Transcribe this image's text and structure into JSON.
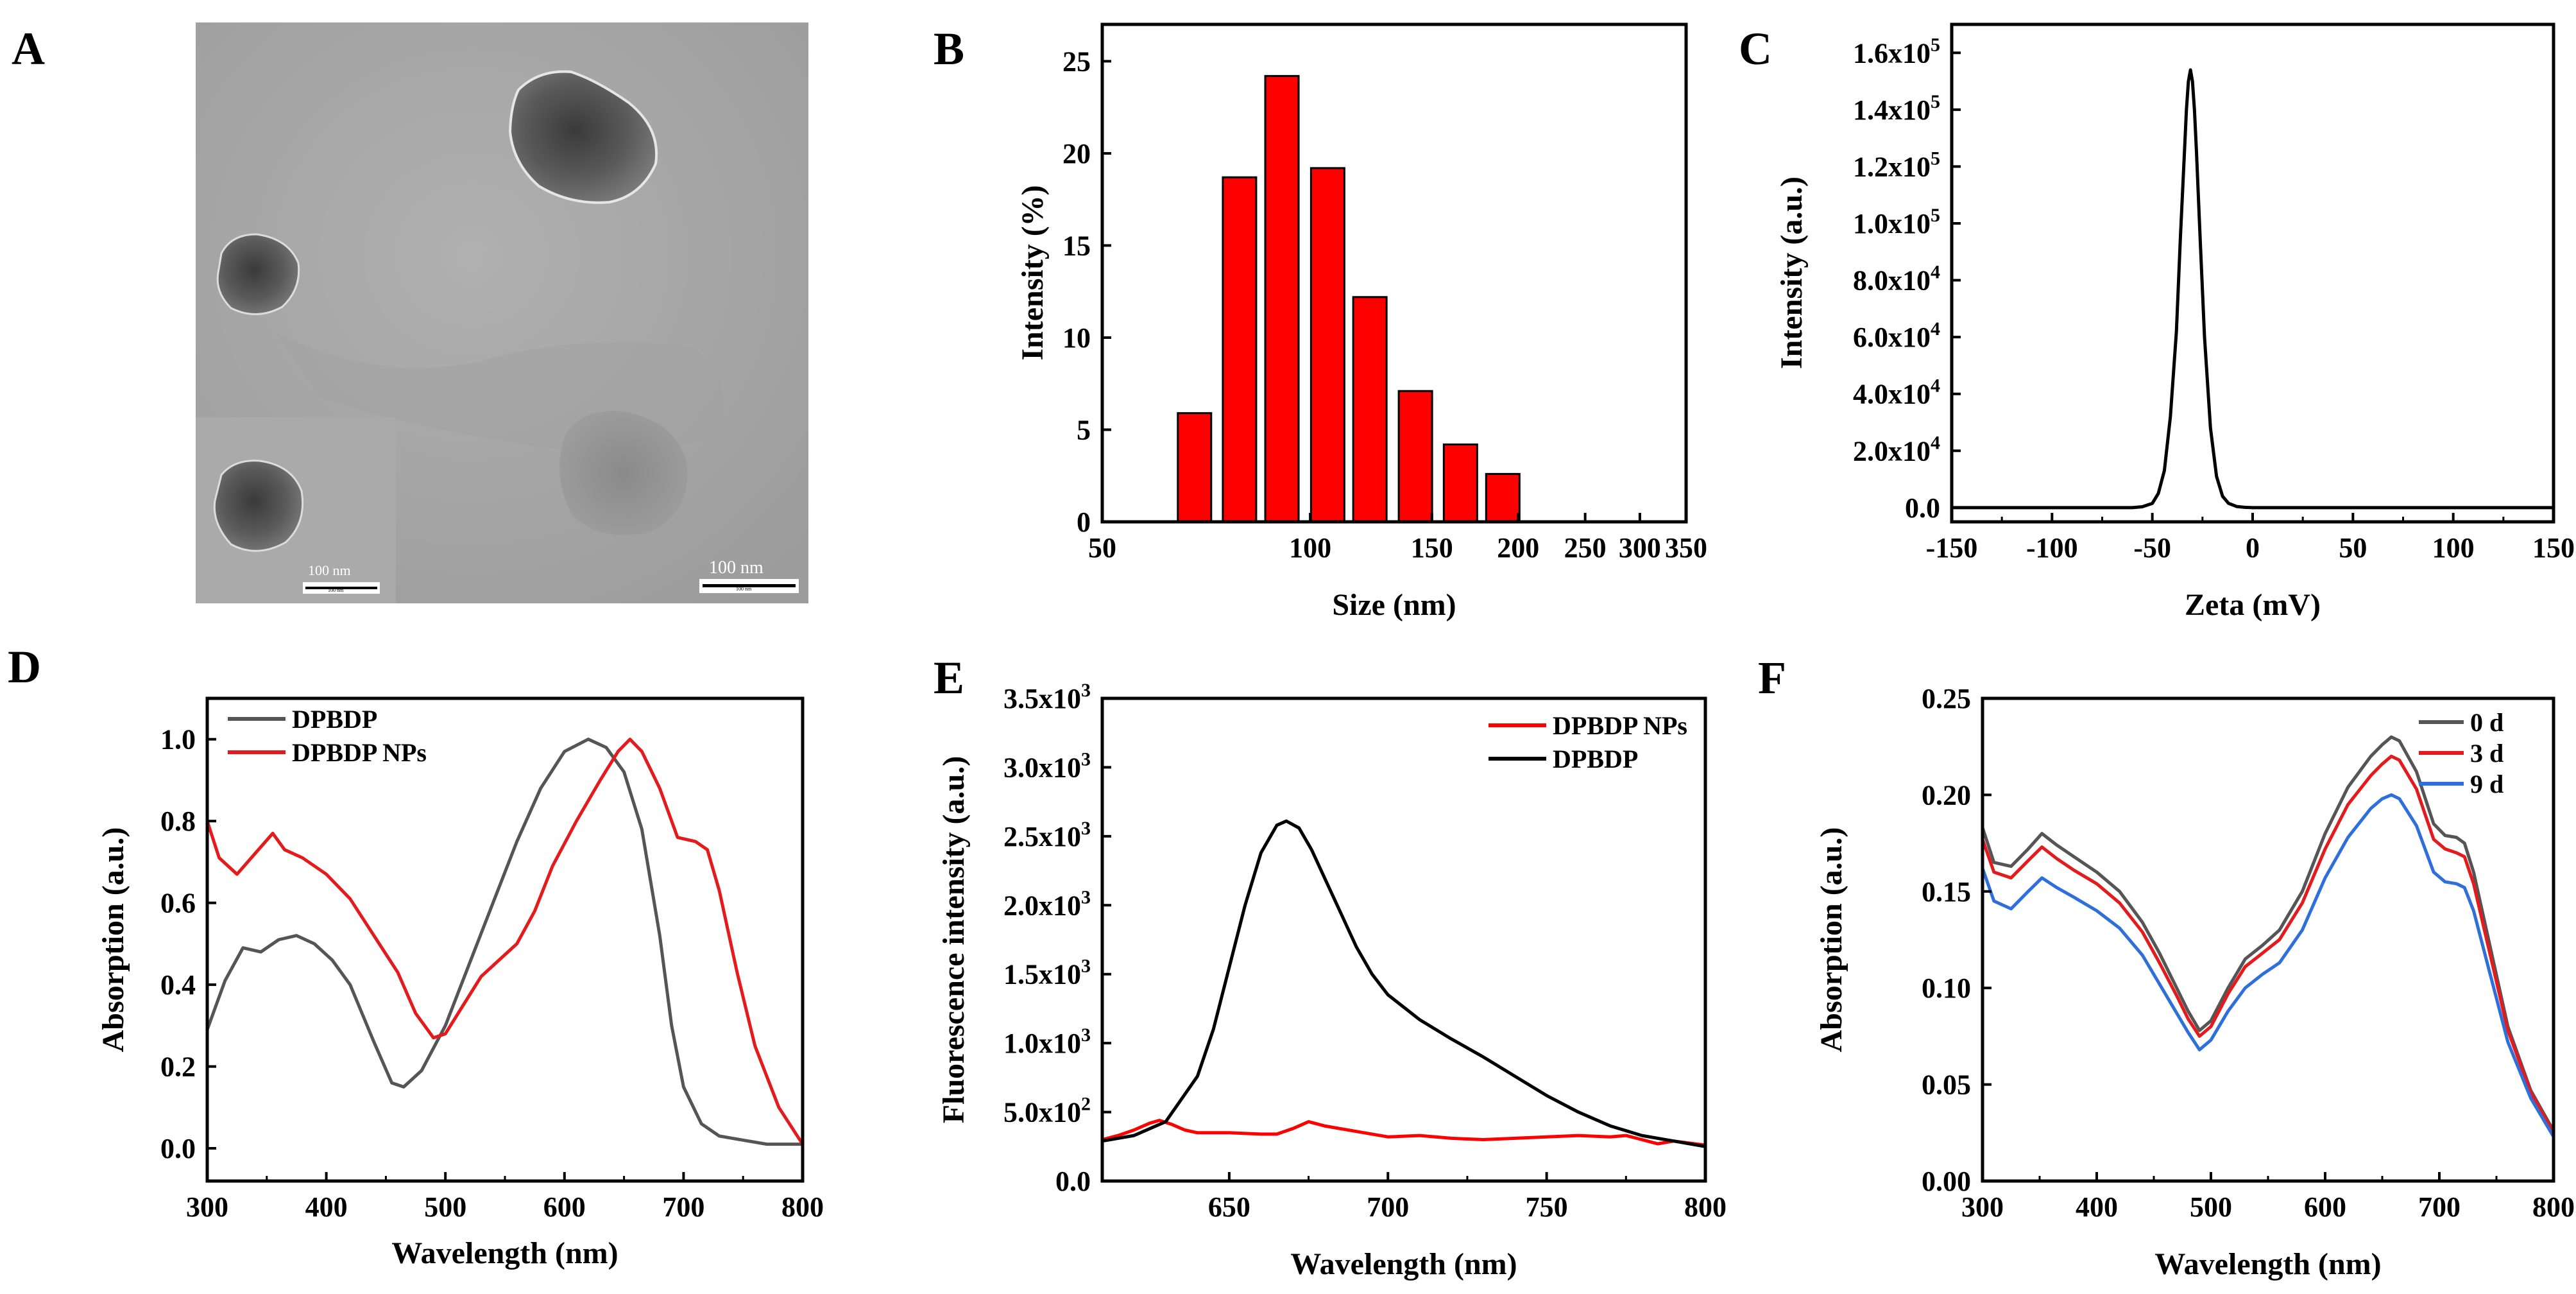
{
  "panels": {
    "A": {
      "letter": "A",
      "scale_main": "100 nm",
      "scale_inset": "100 nm",
      "scale_inset_small": "100 nm",
      "scale_main_small": "100 nm"
    },
    "B": {
      "letter": "B"
    },
    "C": {
      "letter": "C"
    },
    "D": {
      "letter": "D"
    },
    "E": {
      "letter": "E"
    },
    "F": {
      "letter": "F"
    }
  },
  "colors": {
    "red": "#e41a1c",
    "bar_red": "#ff0000",
    "black": "#000000",
    "gray": "#555555",
    "blue": "#2f6fdc",
    "tem_background": "#a6a6a6"
  },
  "chart_data": [
    {
      "panel": "B",
      "type": "bar",
      "xscale": "log",
      "xlabel": "Size (nm)",
      "ylabel": "Intensity (%)",
      "xlim": [
        50,
        350
      ],
      "ylim": [
        0,
        27
      ],
      "xticks": [
        50,
        100,
        150,
        200,
        250,
        300,
        350
      ],
      "xtick_labels": [
        "50",
        "100",
        "150",
        "200",
        "250",
        "300",
        "350"
      ],
      "yticks": [
        0,
        5,
        10,
        15,
        20,
        25
      ],
      "ytick_labels": [
        "0",
        "5",
        "10",
        "15",
        "20",
        "25"
      ],
      "series": [
        {
          "color": "#ff0000",
          "x": [
            68,
            79,
            91,
            106,
            122,
            142,
            165,
            190
          ],
          "values": [
            5.9,
            18.7,
            24.2,
            19.2,
            12.2,
            7.1,
            4.2,
            2.6
          ]
        }
      ]
    },
    {
      "panel": "C",
      "type": "line",
      "xlabel": "Zeta (mV)",
      "ylabel": "Intensity (a.u.)",
      "xlim": [
        -150,
        150
      ],
      "ylim": [
        -5000,
        170000
      ],
      "xticks": [
        -150,
        -100,
        -50,
        0,
        50,
        100,
        150
      ],
      "xtick_labels": [
        "-150",
        "-100",
        "-50",
        "0",
        "50",
        "100",
        "150"
      ],
      "yticks": [
        0,
        20000,
        40000,
        60000,
        80000,
        100000,
        120000,
        140000,
        160000
      ],
      "ytick_labels": [
        {
          "base": "0.0",
          "exp": ""
        },
        {
          "base": "2.0x10",
          "exp": "4"
        },
        {
          "base": "4.0x10",
          "exp": "4"
        },
        {
          "base": "6.0x10",
          "exp": "4"
        },
        {
          "base": "8.0x10",
          "exp": "4"
        },
        {
          "base": "1.0x10",
          "exp": "5"
        },
        {
          "base": "1.2x10",
          "exp": "5"
        },
        {
          "base": "1.4x10",
          "exp": "5"
        },
        {
          "base": "1.6x10",
          "exp": "5"
        }
      ],
      "series": [
        {
          "color": "#000000",
          "x": [
            -150,
            -60,
            -55,
            -50,
            -47,
            -44,
            -41,
            -38,
            -36,
            -34,
            -33,
            -32,
            -31,
            -30,
            -29,
            -28,
            -26,
            -24,
            -21,
            -18,
            -15,
            -12,
            -8,
            -4,
            0,
            150
          ],
          "y": [
            0,
            0,
            300,
            1500,
            5000,
            13000,
            32000,
            62000,
            95000,
            125000,
            140000,
            150000,
            154000,
            150000,
            140000,
            125000,
            92000,
            60000,
            28000,
            11000,
            4000,
            1500,
            400,
            100,
            0,
            0
          ]
        }
      ]
    },
    {
      "panel": "D",
      "type": "line",
      "xlabel": "Wavelength (nm)",
      "ylabel": "Absorption (a.u.)",
      "xlim": [
        300,
        800
      ],
      "ylim": [
        -0.08,
        1.1
      ],
      "xticks": [
        300,
        400,
        500,
        600,
        700,
        800
      ],
      "xtick_labels": [
        "300",
        "400",
        "500",
        "600",
        "700",
        "800"
      ],
      "yticks": [
        0,
        0.2,
        0.4,
        0.6,
        0.8,
        1.0
      ],
      "ytick_labels": [
        "0.0",
        "0.2",
        "0.4",
        "0.6",
        "0.8",
        "1.0"
      ],
      "legend": [
        "DPBDP",
        "DPBDP NPs"
      ],
      "legend_position": "top-left",
      "series": [
        {
          "name": "DPBDP",
          "color": "#555555",
          "x": [
            300,
            315,
            330,
            345,
            360,
            375,
            390,
            405,
            420,
            440,
            455,
            465,
            480,
            500,
            520,
            540,
            560,
            580,
            600,
            620,
            635,
            650,
            665,
            680,
            690,
            700,
            715,
            730,
            750,
            770,
            790,
            800
          ],
          "y": [
            0.29,
            0.41,
            0.49,
            0.48,
            0.51,
            0.52,
            0.5,
            0.46,
            0.4,
            0.26,
            0.16,
            0.15,
            0.19,
            0.3,
            0.45,
            0.6,
            0.75,
            0.88,
            0.97,
            1.0,
            0.98,
            0.92,
            0.78,
            0.52,
            0.3,
            0.15,
            0.06,
            0.03,
            0.02,
            0.01,
            0.01,
            0.01
          ]
        },
        {
          "name": "DPBDP NPs",
          "color": "#e41a1c",
          "x": [
            300,
            310,
            325,
            340,
            355,
            365,
            380,
            400,
            420,
            440,
            460,
            475,
            490,
            500,
            515,
            530,
            545,
            560,
            575,
            590,
            610,
            630,
            645,
            655,
            665,
            680,
            695,
            710,
            720,
            730,
            745,
            760,
            780,
            800
          ],
          "y": [
            0.8,
            0.71,
            0.67,
            0.72,
            0.77,
            0.73,
            0.71,
            0.67,
            0.61,
            0.52,
            0.43,
            0.33,
            0.27,
            0.28,
            0.35,
            0.42,
            0.46,
            0.5,
            0.58,
            0.69,
            0.8,
            0.9,
            0.97,
            1.0,
            0.97,
            0.88,
            0.76,
            0.75,
            0.73,
            0.63,
            0.43,
            0.25,
            0.1,
            0.01
          ]
        }
      ]
    },
    {
      "panel": "E",
      "type": "line",
      "xlabel": "Wavelength (nm)",
      "ylabel": "Fluorescence intensity (a.u.)",
      "xlim": [
        610,
        800
      ],
      "ylim": [
        0,
        3500
      ],
      "xticks": [
        650,
        700,
        750,
        800
      ],
      "xtick_labels": [
        "650",
        "700",
        "750",
        "800"
      ],
      "yticks": [
        0,
        500,
        1000,
        1500,
        2000,
        2500,
        3000,
        3500
      ],
      "ytick_labels": [
        {
          "base": "0.0",
          "exp": ""
        },
        {
          "base": "5.0x10",
          "exp": "2"
        },
        {
          "base": "1.0x10",
          "exp": "3"
        },
        {
          "base": "1.5x10",
          "exp": "3"
        },
        {
          "base": "2.0x10",
          "exp": "3"
        },
        {
          "base": "2.5x10",
          "exp": "3"
        },
        {
          "base": "3.0x10",
          "exp": "3"
        },
        {
          "base": "3.5x10",
          "exp": "3"
        }
      ],
      "legend": [
        "DPBDP NPs",
        "DPBDP"
      ],
      "legend_position": "top-right",
      "series": [
        {
          "name": "DPBDP NPs",
          "color": "#ff0000",
          "x": [
            610,
            615,
            620,
            625,
            628,
            632,
            636,
            640,
            650,
            660,
            665,
            670,
            675,
            680,
            690,
            700,
            710,
            720,
            730,
            740,
            750,
            760,
            770,
            775,
            780,
            785,
            790,
            800
          ],
          "y": [
            300,
            330,
            370,
            420,
            440,
            410,
            370,
            350,
            350,
            340,
            340,
            380,
            430,
            400,
            360,
            320,
            330,
            310,
            300,
            310,
            320,
            330,
            320,
            330,
            300,
            270,
            290,
            260
          ]
        },
        {
          "name": "DPBDP",
          "color": "#000000",
          "x": [
            610,
            620,
            630,
            640,
            645,
            650,
            655,
            660,
            665,
            668,
            672,
            676,
            680,
            685,
            690,
            695,
            700,
            710,
            720,
            730,
            740,
            750,
            760,
            770,
            780,
            790,
            800
          ],
          "y": [
            290,
            330,
            430,
            760,
            1100,
            1550,
            2000,
            2380,
            2580,
            2610,
            2560,
            2400,
            2200,
            1950,
            1700,
            1500,
            1350,
            1170,
            1030,
            900,
            760,
            620,
            500,
            400,
            330,
            290,
            250
          ]
        }
      ]
    },
    {
      "panel": "F",
      "type": "line",
      "xlabel": "Wavelength (nm)",
      "ylabel": "Absorption (a.u.)",
      "xlim": [
        300,
        800
      ],
      "ylim": [
        0,
        0.25
      ],
      "xticks": [
        300,
        400,
        500,
        600,
        700,
        800
      ],
      "xtick_labels": [
        "300",
        "400",
        "500",
        "600",
        "700",
        "800"
      ],
      "yticks": [
        0,
        0.05,
        0.1,
        0.15,
        0.2,
        0.25
      ],
      "ytick_labels": [
        "0.00",
        "0.05",
        "0.10",
        "0.15",
        "0.20",
        "0.25"
      ],
      "legend": [
        "0 d",
        "3 d",
        "9 d"
      ],
      "legend_position": "top-right",
      "series": [
        {
          "name": "0 d",
          "color": "#555555",
          "x": [
            300,
            310,
            325,
            340,
            352,
            365,
            380,
            400,
            420,
            440,
            455,
            470,
            480,
            490,
            500,
            515,
            530,
            545,
            560,
            580,
            600,
            620,
            640,
            650,
            658,
            665,
            680,
            695,
            705,
            715,
            722,
            730,
            745,
            760,
            780,
            800
          ],
          "y": [
            0.183,
            0.165,
            0.163,
            0.172,
            0.18,
            0.174,
            0.168,
            0.16,
            0.15,
            0.134,
            0.118,
            0.1,
            0.088,
            0.078,
            0.083,
            0.1,
            0.115,
            0.122,
            0.13,
            0.15,
            0.18,
            0.204,
            0.22,
            0.226,
            0.23,
            0.228,
            0.212,
            0.185,
            0.179,
            0.178,
            0.175,
            0.16,
            0.12,
            0.08,
            0.047,
            0.026
          ]
        },
        {
          "name": "3 d",
          "color": "#e41a1c",
          "x": [
            300,
            310,
            325,
            340,
            352,
            365,
            380,
            400,
            420,
            440,
            455,
            470,
            480,
            490,
            500,
            515,
            530,
            545,
            560,
            580,
            600,
            620,
            640,
            650,
            658,
            665,
            680,
            695,
            705,
            715,
            722,
            730,
            745,
            760,
            780,
            800
          ],
          "y": [
            0.177,
            0.16,
            0.157,
            0.166,
            0.173,
            0.167,
            0.161,
            0.154,
            0.144,
            0.129,
            0.113,
            0.096,
            0.084,
            0.075,
            0.08,
            0.097,
            0.111,
            0.118,
            0.125,
            0.144,
            0.172,
            0.195,
            0.21,
            0.216,
            0.22,
            0.218,
            0.203,
            0.177,
            0.172,
            0.17,
            0.168,
            0.154,
            0.116,
            0.078,
            0.046,
            0.025
          ]
        },
        {
          "name": "9 d",
          "color": "#2f6fdc",
          "x": [
            300,
            310,
            325,
            340,
            352,
            365,
            380,
            400,
            420,
            440,
            455,
            470,
            480,
            490,
            500,
            515,
            530,
            545,
            560,
            580,
            600,
            620,
            640,
            650,
            658,
            665,
            680,
            695,
            705,
            715,
            722,
            730,
            745,
            760,
            780,
            800
          ],
          "y": [
            0.162,
            0.145,
            0.141,
            0.15,
            0.157,
            0.152,
            0.147,
            0.14,
            0.131,
            0.117,
            0.102,
            0.087,
            0.077,
            0.068,
            0.073,
            0.088,
            0.1,
            0.107,
            0.113,
            0.13,
            0.157,
            0.178,
            0.193,
            0.198,
            0.2,
            0.198,
            0.184,
            0.16,
            0.155,
            0.154,
            0.152,
            0.14,
            0.106,
            0.072,
            0.043,
            0.023
          ]
        }
      ]
    }
  ]
}
